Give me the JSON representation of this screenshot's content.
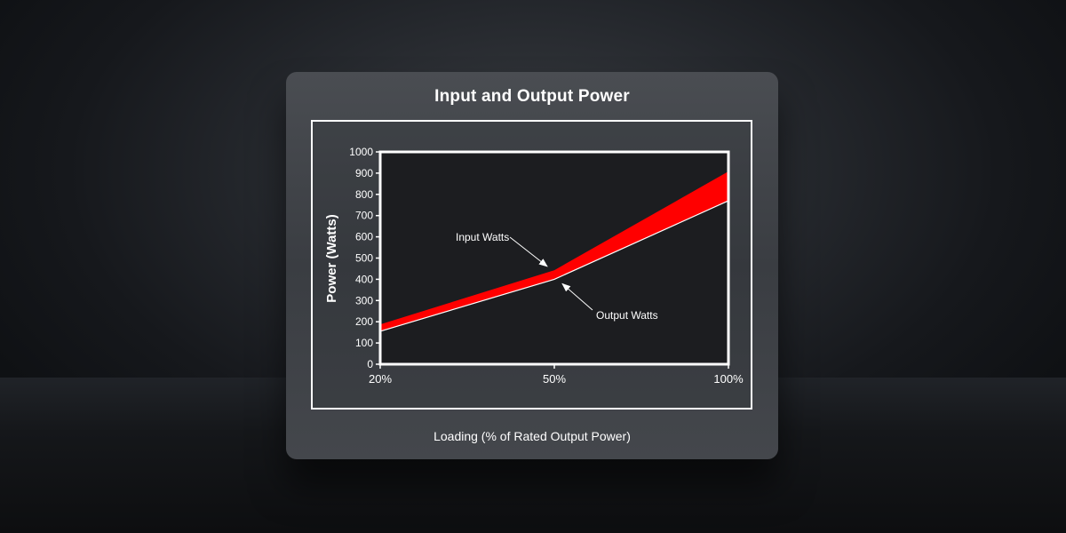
{
  "chart_data": {
    "type": "area",
    "title": "Input and Output Power",
    "xlabel": "Loading (% of Rated Output Power)",
    "ylabel": "Power (Watts)",
    "categories": [
      "20%",
      "50%",
      "100%"
    ],
    "series": [
      {
        "name": "Input Watts",
        "values": [
          185,
          440,
          905
        ]
      },
      {
        "name": "Output Watts",
        "values": [
          155,
          400,
          770
        ]
      }
    ],
    "ylim": [
      0,
      1000
    ],
    "yticks": [
      0,
      100,
      200,
      300,
      400,
      500,
      600,
      700,
      800,
      900,
      1000
    ],
    "band_color": "#ff0000",
    "grid": false,
    "annotations": [
      {
        "text": "Input Watts",
        "series": "Input Watts",
        "category": "50%"
      },
      {
        "text": "Output Watts",
        "series": "Output Watts",
        "category": "50%"
      }
    ]
  }
}
